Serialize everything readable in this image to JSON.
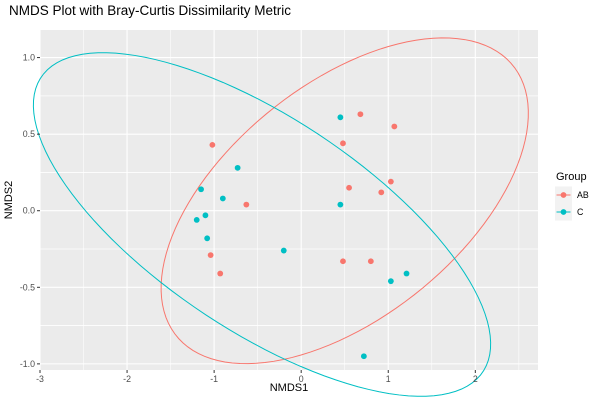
{
  "chart_data": {
    "type": "scatter",
    "title": "NMDS Plot with Bray-Curtis Dissimilarity Metric",
    "xlabel": "NMDS1",
    "ylabel": "NMDS2",
    "xlim": [
      -3.0,
      2.72
    ],
    "ylim": [
      -1.04,
      1.18
    ],
    "x_ticks": [
      -3,
      -2,
      -1,
      0,
      1,
      2
    ],
    "x_tick_labels": [
      "-3",
      "-2",
      "-1",
      "0",
      "1",
      "2"
    ],
    "y_ticks": [
      -1.0,
      -0.5,
      0.0,
      0.5,
      1.0
    ],
    "y_tick_labels": [
      "-1.0",
      "-0.5",
      "0.0",
      "0.5",
      "1.0"
    ],
    "grid": true,
    "legend": {
      "title": "Group",
      "placement": "right",
      "entries": [
        {
          "label": "AB",
          "color": "#F8766D"
        },
        {
          "label": "C",
          "color": "#00BFC4"
        }
      ]
    },
    "series": [
      {
        "name": "AB",
        "color": "#F8766D",
        "points": [
          {
            "x": -1.02,
            "y": 0.43
          },
          {
            "x": -0.63,
            "y": 0.04
          },
          {
            "x": -1.04,
            "y": -0.29
          },
          {
            "x": -0.93,
            "y": -0.41
          },
          {
            "x": 0.68,
            "y": 0.63
          },
          {
            "x": 1.07,
            "y": 0.55
          },
          {
            "x": 0.48,
            "y": 0.44
          },
          {
            "x": 0.55,
            "y": 0.15
          },
          {
            "x": 0.92,
            "y": 0.12
          },
          {
            "x": 1.03,
            "y": 0.19
          },
          {
            "x": 0.48,
            "y": -0.33
          },
          {
            "x": 0.8,
            "y": -0.33
          }
        ],
        "ellipse": {
          "cx": 0.5,
          "cy": 0.065,
          "rx": 2.2,
          "ry": 0.86,
          "angle_deg": 18
        }
      },
      {
        "name": "C",
        "color": "#00BFC4",
        "points": [
          {
            "x": -0.73,
            "y": 0.28
          },
          {
            "x": -1.15,
            "y": 0.14
          },
          {
            "x": -0.9,
            "y": 0.08
          },
          {
            "x": -1.1,
            "y": -0.03
          },
          {
            "x": -1.2,
            "y": -0.06
          },
          {
            "x": -1.08,
            "y": -0.18
          },
          {
            "x": -0.2,
            "y": -0.26
          },
          {
            "x": 0.45,
            "y": 0.61
          },
          {
            "x": 0.45,
            "y": 0.04
          },
          {
            "x": 1.03,
            "y": -0.46
          },
          {
            "x": 1.21,
            "y": -0.41
          },
          {
            "x": 0.72,
            "y": -0.95
          }
        ],
        "ellipse": {
          "cx": -0.45,
          "cy": -0.09,
          "rx": 2.75,
          "ry": 0.77,
          "angle_deg": -18
        }
      }
    ]
  }
}
